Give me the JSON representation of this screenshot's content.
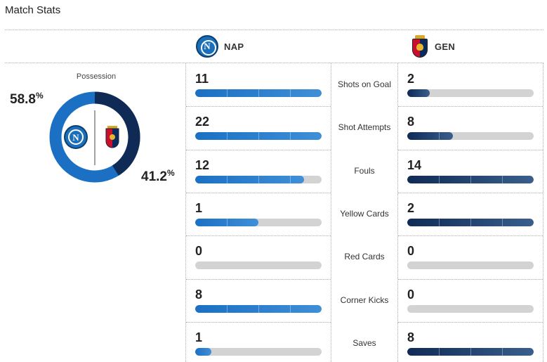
{
  "header": {
    "title": "Match Stats"
  },
  "teams": {
    "home": {
      "abbr": "NAP",
      "badge_letter": "N",
      "color": "#1b70c4"
    },
    "away": {
      "abbr": "GEN",
      "color": "#0f2a55"
    }
  },
  "possession": {
    "label": "Possession",
    "home_value": "58.8",
    "away_value": "41.2",
    "unit": "%",
    "home_fraction": 0.588,
    "away_fraction": 0.412
  },
  "stats": [
    {
      "label": "Shots on Goal",
      "home": "11",
      "away": "2",
      "home_fill": 1.0,
      "away_fill": 0.18
    },
    {
      "label": "Shot Attempts",
      "home": "22",
      "away": "8",
      "home_fill": 1.0,
      "away_fill": 0.36
    },
    {
      "label": "Fouls",
      "home": "12",
      "away": "14",
      "home_fill": 0.86,
      "away_fill": 1.0
    },
    {
      "label": "Yellow Cards",
      "home": "1",
      "away": "2",
      "home_fill": 0.5,
      "away_fill": 1.0
    },
    {
      "label": "Red Cards",
      "home": "0",
      "away": "0",
      "home_fill": 0.0,
      "away_fill": 0.0
    },
    {
      "label": "Corner Kicks",
      "home": "8",
      "away": "0",
      "home_fill": 1.0,
      "away_fill": 0.0
    },
    {
      "label": "Saves",
      "home": "1",
      "away": "8",
      "home_fill": 0.13,
      "away_fill": 1.0
    }
  ]
}
